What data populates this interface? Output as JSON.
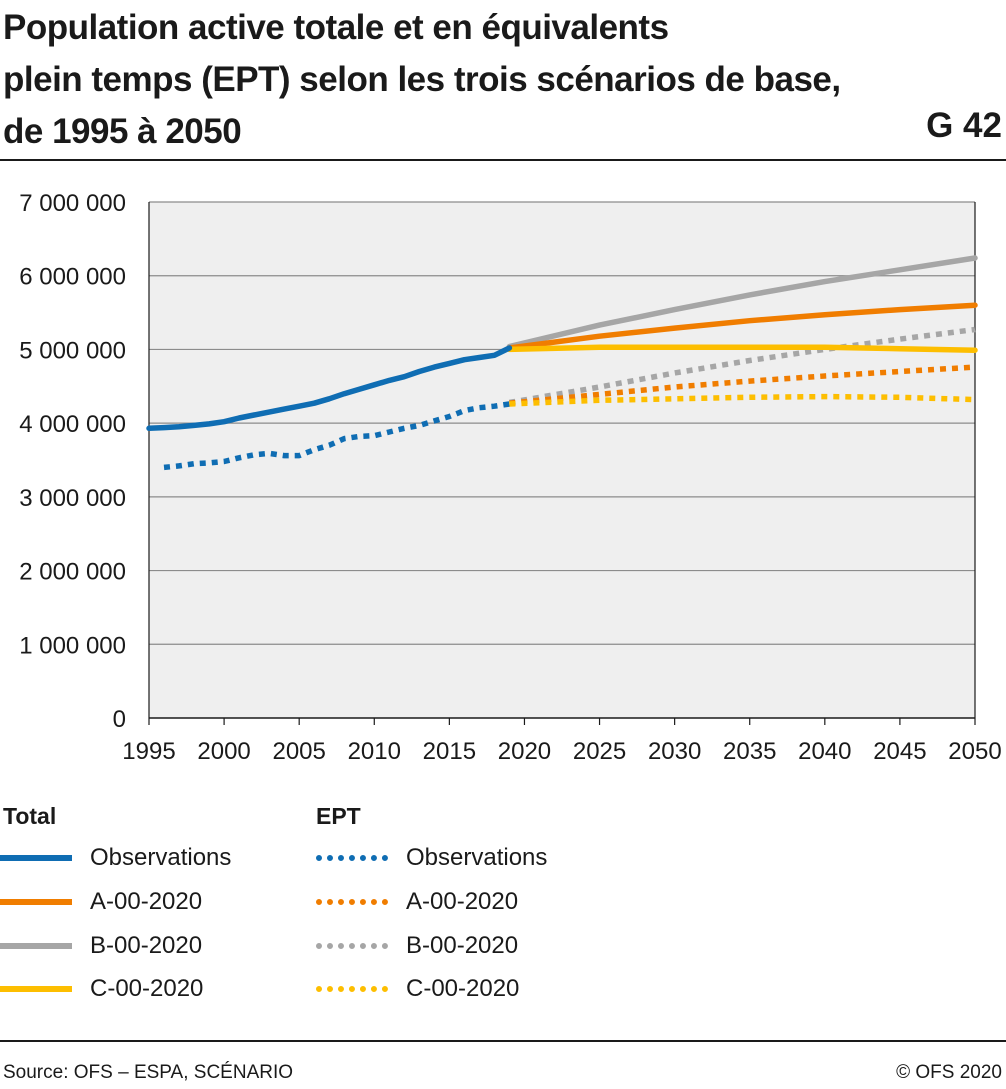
{
  "header": {
    "title_lines": [
      "Population active totale et en équivalents",
      "plein temps (EPT) selon les trois scénarios de base,",
      "de 1995 à 2050"
    ],
    "code": "G 42"
  },
  "colors": {
    "observations": "#0f6db3",
    "A": "#f07d00",
    "B": "#a6a6a6",
    "C": "#fdbe00",
    "plot_bg": "#efefef",
    "grid": "#8c8c8c"
  },
  "legend": {
    "total_heading": "Total",
    "ept_heading": "EPT",
    "items": [
      "Observations",
      "A-00-2020",
      "B-00-2020",
      "C-00-2020"
    ]
  },
  "footer": {
    "source": "Source: OFS – ESPA, SCÉNARIO",
    "copyright": "© OFS 2020"
  },
  "chart_data": {
    "type": "line",
    "title": "Population active totale et en équivalents plein temps (EPT) selon les trois scénarios de base, de 1995 à 2050",
    "xlim": [
      1995,
      2050
    ],
    "ylim": [
      0,
      7000000
    ],
    "x_ticks": [
      1995,
      2000,
      2005,
      2010,
      2015,
      2020,
      2025,
      2030,
      2035,
      2040,
      2045,
      2050
    ],
    "y_ticks": [
      0,
      1000000,
      2000000,
      3000000,
      4000000,
      5000000,
      6000000,
      7000000
    ],
    "y_tick_labels": [
      "0",
      "1 000 000",
      "2 000 000",
      "3 000 000",
      "4 000 000",
      "5 000 000",
      "6 000 000",
      "7 000 000"
    ],
    "grid": "horizontal",
    "legend_position": "bottom",
    "series": [
      {
        "name": "Observations",
        "group": "Total",
        "style": "solid",
        "color": "#0f6db3",
        "x": [
          1995,
          1996,
          1997,
          1998,
          1999,
          2000,
          2001,
          2002,
          2003,
          2004,
          2005,
          2006,
          2007,
          2008,
          2009,
          2010,
          2011,
          2012,
          2013,
          2014,
          2015,
          2016,
          2017,
          2018,
          2019
        ],
        "y": [
          3930000,
          3940000,
          3950000,
          3970000,
          3990000,
          4020000,
          4070000,
          4110000,
          4150000,
          4190000,
          4230000,
          4270000,
          4330000,
          4400000,
          4460000,
          4520000,
          4580000,
          4630000,
          4700000,
          4760000,
          4810000,
          4860000,
          4890000,
          4920000,
          5020000
        ]
      },
      {
        "name": "A-00-2020",
        "group": "Total",
        "style": "solid",
        "color": "#f07d00",
        "x": [
          2019,
          2025,
          2030,
          2035,
          2040,
          2045,
          2050
        ],
        "y": [
          5020000,
          5180000,
          5290000,
          5390000,
          5470000,
          5540000,
          5600000
        ]
      },
      {
        "name": "B-00-2020",
        "group": "Total",
        "style": "solid",
        "color": "#a6a6a6",
        "x": [
          2019,
          2025,
          2030,
          2035,
          2040,
          2045,
          2050
        ],
        "y": [
          5040000,
          5330000,
          5540000,
          5740000,
          5920000,
          6080000,
          6240000
        ]
      },
      {
        "name": "C-00-2020",
        "group": "Total",
        "style": "solid",
        "color": "#fdbe00",
        "x": [
          2019,
          2025,
          2030,
          2035,
          2040,
          2045,
          2050
        ],
        "y": [
          5000000,
          5030000,
          5030000,
          5030000,
          5030000,
          5010000,
          4990000
        ]
      },
      {
        "name": "Observations",
        "group": "EPT",
        "style": "dotted",
        "color": "#0f6db3",
        "x": [
          1996,
          1997,
          1998,
          1999,
          2000,
          2001,
          2002,
          2003,
          2004,
          2005,
          2006,
          2007,
          2008,
          2009,
          2010,
          2011,
          2012,
          2013,
          2014,
          2015,
          2016,
          2017,
          2018,
          2019
        ],
        "y": [
          3400000,
          3420000,
          3450000,
          3460000,
          3480000,
          3530000,
          3570000,
          3590000,
          3560000,
          3560000,
          3640000,
          3700000,
          3790000,
          3820000,
          3830000,
          3880000,
          3930000,
          3970000,
          4030000,
          4090000,
          4170000,
          4210000,
          4230000,
          4260000
        ]
      },
      {
        "name": "A-00-2020",
        "group": "EPT",
        "style": "dotted",
        "color": "#f07d00",
        "x": [
          2019,
          2025,
          2030,
          2035,
          2040,
          2045,
          2050
        ],
        "y": [
          4270000,
          4390000,
          4490000,
          4570000,
          4640000,
          4700000,
          4760000
        ]
      },
      {
        "name": "B-00-2020",
        "group": "EPT",
        "style": "dotted",
        "color": "#a6a6a6",
        "x": [
          2019,
          2025,
          2030,
          2035,
          2040,
          2045,
          2050
        ],
        "y": [
          4280000,
          4490000,
          4680000,
          4850000,
          5000000,
          5140000,
          5270000
        ]
      },
      {
        "name": "C-00-2020",
        "group": "EPT",
        "style": "dotted",
        "color": "#fdbe00",
        "x": [
          2019,
          2025,
          2030,
          2035,
          2040,
          2045,
          2050
        ],
        "y": [
          4260000,
          4310000,
          4330000,
          4350000,
          4360000,
          4350000,
          4320000
        ]
      }
    ]
  }
}
